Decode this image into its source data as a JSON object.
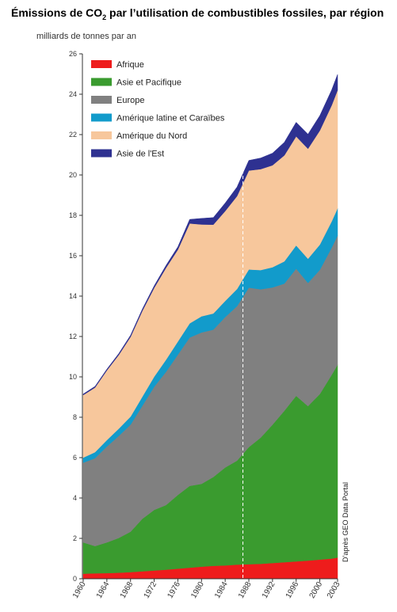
{
  "title_parts": {
    "pre": "Émissions de CO",
    "sub": "2",
    "post": " par l’utilisation de combustibles fossiles, par région"
  },
  "ylabel": "milliards de tonnes par an",
  "source": "D’après GEO Data Portal",
  "chart_data": {
    "type": "area",
    "stacked": true,
    "ylim": [
      0,
      26
    ],
    "yticks": [
      0,
      2,
      4,
      6,
      8,
      10,
      12,
      14,
      16,
      18,
      20,
      22,
      24,
      26
    ],
    "xlim": [
      1960,
      2003
    ],
    "xticks": [
      1960,
      1964,
      1968,
      1972,
      1976,
      1980,
      1984,
      1988,
      1992,
      1996,
      2000,
      2003
    ],
    "marker_year": 1987,
    "grid": false,
    "legend_position": "top-left",
    "x": [
      1960,
      1962,
      1964,
      1966,
      1968,
      1970,
      1972,
      1974,
      1976,
      1978,
      1980,
      1982,
      1984,
      1986,
      1988,
      1990,
      1992,
      1994,
      1996,
      1998,
      2000,
      2002,
      2003
    ],
    "series": [
      {
        "name": "Afrique",
        "color": "#ee1c1c",
        "values": [
          0.25,
          0.27,
          0.28,
          0.3,
          0.33,
          0.37,
          0.41,
          0.45,
          0.5,
          0.55,
          0.6,
          0.64,
          0.66,
          0.7,
          0.72,
          0.74,
          0.78,
          0.82,
          0.86,
          0.9,
          0.95,
          1.0,
          1.05
        ]
      },
      {
        "name": "Asie et Pacifique",
        "color": "#3a9b2f",
        "values": [
          1.55,
          1.35,
          1.52,
          1.72,
          2.0,
          2.6,
          3.0,
          3.2,
          3.65,
          4.05,
          4.1,
          4.4,
          4.85,
          5.15,
          5.8,
          6.25,
          6.85,
          7.5,
          8.2,
          7.65,
          8.2,
          9.1,
          9.55
        ]
      },
      {
        "name": "Europe",
        "color": "#808080",
        "values": [
          3.95,
          4.35,
          4.75,
          5.05,
          5.3,
          5.6,
          6.1,
          6.6,
          6.95,
          7.35,
          7.5,
          7.3,
          7.45,
          7.65,
          7.9,
          7.35,
          6.8,
          6.3,
          6.3,
          6.1,
          6.15,
          6.3,
          6.4
        ]
      },
      {
        "name": "Amérique latine et Caraïbes",
        "color": "#129bcb",
        "values": [
          0.25,
          0.3,
          0.32,
          0.36,
          0.4,
          0.45,
          0.5,
          0.6,
          0.65,
          0.7,
          0.8,
          0.8,
          0.8,
          0.85,
          0.9,
          0.95,
          1.0,
          1.1,
          1.15,
          1.2,
          1.25,
          1.3,
          1.35
        ]
      },
      {
        "name": "Amérique du Nord",
        "color": "#f7c79c",
        "values": [
          3.1,
          3.2,
          3.45,
          3.65,
          3.95,
          4.25,
          4.4,
          4.55,
          4.55,
          4.95,
          4.55,
          4.4,
          4.45,
          4.6,
          4.9,
          5.0,
          5.05,
          5.25,
          5.4,
          5.45,
          5.65,
          5.75,
          5.85
        ]
      },
      {
        "name": "Asie de l'Est",
        "color": "#2e3191",
        "values": [
          0.05,
          0.06,
          0.06,
          0.07,
          0.08,
          0.09,
          0.1,
          0.12,
          0.14,
          0.2,
          0.3,
          0.35,
          0.4,
          0.45,
          0.5,
          0.55,
          0.6,
          0.65,
          0.7,
          0.72,
          0.74,
          0.76,
          0.78
        ]
      }
    ]
  }
}
